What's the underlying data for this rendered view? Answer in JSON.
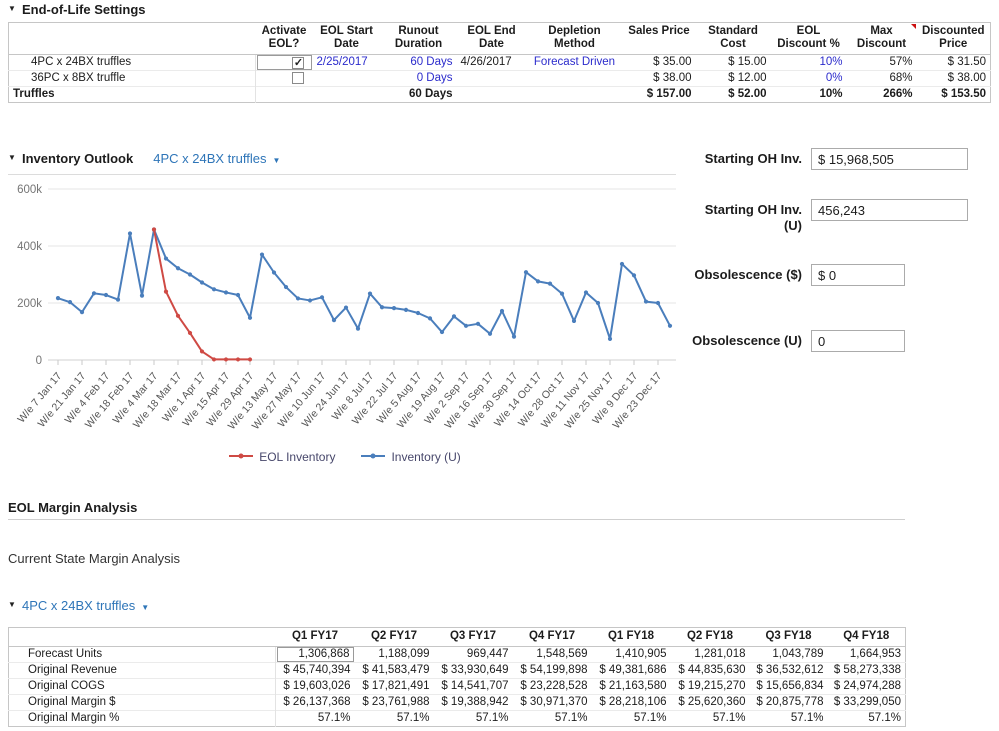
{
  "colors": {
    "link_blue": "#2b2bcc",
    "selector_blue": "#2e75b8",
    "eol_red": "#cf4a44",
    "inventory_blue": "#4a7ebc",
    "flag_red": "#cc1111",
    "legend_text": "#47476b"
  },
  "eol_settings": {
    "section_title": "End-of-Life Settings",
    "columns": [
      "",
      "Activate\nEOL?",
      "EOL Start\nDate",
      "Runout\nDuration",
      "EOL End\nDate",
      "Depletion\nMethod",
      "Sales Price",
      "Standard\nCost",
      "EOL\nDiscount %",
      "Max Discount",
      "Discounted\nPrice"
    ],
    "flagged_column": "Max Discount",
    "rows": [
      {
        "label": "4PC x 24BX truffles",
        "indent": true,
        "bold": false,
        "activate": {
          "type": "checkbox",
          "checked": true,
          "boxed": true
        },
        "cells": {
          "eol_start": "2/25/2017",
          "runout": "60 Days",
          "eol_end": "4/26/2017",
          "depletion": "Forecast Driven",
          "sales_price": "$ 35.00",
          "standard_cost": "$ 15.00",
          "eol_discount": "10%",
          "max_discount": "57%",
          "discounted_price": "$ 31.50"
        }
      },
      {
        "label": "36PC x 8BX truffle",
        "indent": true,
        "bold": false,
        "activate": {
          "type": "checkbox",
          "checked": false,
          "boxed": false
        },
        "cells": {
          "eol_start": "",
          "runout": "0 Days",
          "eol_end": "",
          "depletion": "",
          "sales_price": "$ 38.00",
          "standard_cost": "$ 12.00",
          "eol_discount": "0%",
          "max_discount": "68%",
          "discounted_price": "$ 38.00"
        }
      },
      {
        "label": "Truffles",
        "indent": false,
        "bold": true,
        "activate": null,
        "cells": {
          "eol_start": "",
          "runout": "60 Days",
          "eol_end": "",
          "depletion": "",
          "sales_price": "$ 157.00",
          "standard_cost": "$ 52.00",
          "eol_discount": "10%",
          "max_discount": "266%",
          "discounted_price": "$ 153.50"
        }
      }
    ]
  },
  "inventory_outlook": {
    "section_title": "Inventory Outlook",
    "product_selector": "4PC x 24BX truffles",
    "fields": [
      {
        "label": "Starting OH Inv.",
        "value": "$ 15,968,505",
        "size": "wide"
      },
      {
        "label": "Starting OH Inv. (U)",
        "value": "456,243",
        "size": "wide"
      },
      {
        "label": "Obsolescence ($)",
        "value": "$ 0",
        "size": "narrow"
      },
      {
        "label": "Obsolescence (U)",
        "value": "0",
        "size": "narrow"
      }
    ]
  },
  "chart_data": {
    "type": "line",
    "title": "Inventory Outlook",
    "x_unit": "week ending",
    "x_tick_labels": [
      "W/e 7 Jan 17",
      "W/e 21 Jan 17",
      "W/e 4 Feb 17",
      "W/e 18 Feb 17",
      "W/e 4 Mar 17",
      "W/e 18 Mar 17",
      "W/e 1 Apr 17",
      "W/e 15 Apr 17",
      "W/e 29 Apr 17",
      "W/e 13 May 17",
      "W/e 27 May 17",
      "W/e 10 Jun 17",
      "W/e 24 Jun 17",
      "W/e 8 Jul 17",
      "W/e 22 Jul 17",
      "W/e 5 Aug 17",
      "W/e 19 Aug 17",
      "W/e 2 Sep 17",
      "W/e 16 Sep 17",
      "W/e 30 Sep 17",
      "W/e 14 Oct 17",
      "W/e 28 Oct 17",
      "W/e 11 Nov 17",
      "W/e 25 Nov 17",
      "W/e 9 Dec 17",
      "W/e 23 Dec 17"
    ],
    "ylim": [
      0,
      600000
    ],
    "y_tick_labels": [
      "0",
      "200k",
      "400k",
      "600k"
    ],
    "grid": true,
    "legend_position": "bottom",
    "series": [
      {
        "name": "EOL Inventory",
        "color": "#cf4a44",
        "start_week": 9,
        "values": [
          458000,
          240000,
          155000,
          95000,
          30000,
          2000,
          2000,
          2000,
          2000
        ]
      },
      {
        "name": "Inventory (U)",
        "color": "#4a7ebc",
        "start_week": 1,
        "values": [
          217000,
          203000,
          168000,
          234000,
          228000,
          212000,
          444000,
          226000,
          458000,
          356000,
          322000,
          300000,
          272000,
          248000,
          237000,
          228000,
          148000,
          370000,
          307000,
          256000,
          216000,
          209000,
          220000,
          140000,
          184000,
          110000,
          233000,
          185000,
          182000,
          176000,
          165000,
          146000,
          98000,
          153000,
          120000,
          127000,
          92000,
          172000,
          82000,
          308000,
          276000,
          268000,
          233000,
          137000,
          237000,
          200000,
          74000,
          337000,
          297000,
          205000,
          200000,
          120000
        ]
      }
    ]
  },
  "margin_analysis": {
    "section_title": "EOL Margin Analysis",
    "subtitle": "Current State Margin Analysis",
    "product_selector": "4PC x 24BX truffles",
    "columns": [
      "",
      "Q1 FY17",
      "Q2 FY17",
      "Q3 FY17",
      "Q4 FY17",
      "Q1 FY18",
      "Q2 FY18",
      "Q3 FY18",
      "Q4 FY18"
    ],
    "rows": [
      {
        "label": "Forecast Units",
        "first_cell_boxed": true,
        "values": [
          "1,306,868",
          "1,188,099",
          "969,447",
          "1,548,569",
          "1,410,905",
          "1,281,018",
          "1,043,789",
          "1,664,953"
        ]
      },
      {
        "label": "Original Revenue",
        "values": [
          "$ 45,740,394",
          "$ 41,583,479",
          "$ 33,930,649",
          "$ 54,199,898",
          "$ 49,381,686",
          "$ 44,835,630",
          "$ 36,532,612",
          "$ 58,273,338"
        ]
      },
      {
        "label": "Original COGS",
        "values": [
          "$ 19,603,026",
          "$ 17,821,491",
          "$ 14,541,707",
          "$ 23,228,528",
          "$ 21,163,580",
          "$ 19,215,270",
          "$ 15,656,834",
          "$ 24,974,288"
        ]
      },
      {
        "label": "Original Margin $",
        "values": [
          "$ 26,137,368",
          "$ 23,761,988",
          "$ 19,388,942",
          "$ 30,971,370",
          "$ 28,218,106",
          "$ 25,620,360",
          "$ 20,875,778",
          "$ 33,299,050"
        ]
      },
      {
        "label": "Original Margin %",
        "values": [
          "57.1%",
          "57.1%",
          "57.1%",
          "57.1%",
          "57.1%",
          "57.1%",
          "57.1%",
          "57.1%"
        ]
      }
    ]
  }
}
